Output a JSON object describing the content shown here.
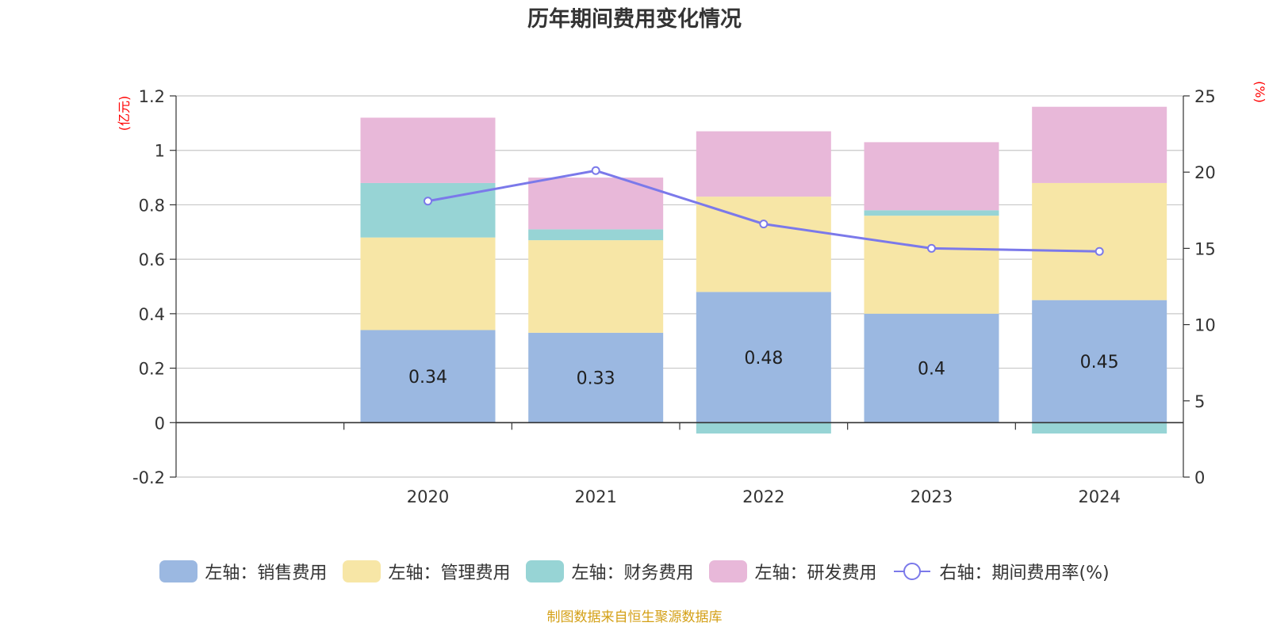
{
  "chart_data": {
    "type": "bar",
    "title": "历年期间费用变化情况",
    "categories": [
      "2020",
      "2021",
      "2022",
      "2023",
      "2024"
    ],
    "stacked": true,
    "left_axis": {
      "unit": "(亿元)",
      "ylim": [
        -0.2,
        1.2
      ],
      "ticks": [
        -0.2,
        0,
        0.2,
        0.4,
        0.6,
        0.8,
        1,
        1.2
      ],
      "tick_labels": [
        "-0.2",
        "0",
        "0.2",
        "0.4",
        "0.6",
        "0.8",
        "1",
        "1.2"
      ]
    },
    "right_axis": {
      "unit": "(%)",
      "ylim": [
        0,
        25
      ],
      "ticks": [
        0,
        5,
        10,
        15,
        20,
        25
      ],
      "tick_labels": [
        "0",
        "5",
        "10",
        "15",
        "20",
        "25"
      ]
    },
    "series": [
      {
        "name": "左轴：销售费用",
        "axis": "left",
        "type": "bar",
        "color": "#9bb8e1",
        "values": [
          0.34,
          0.33,
          0.48,
          0.4,
          0.45
        ],
        "labels": [
          "0.34",
          "0.33",
          "0.48",
          "0.4",
          "0.45"
        ]
      },
      {
        "name": "左轴：管理费用",
        "axis": "left",
        "type": "bar",
        "color": "#f7e6a6",
        "values": [
          0.34,
          0.34,
          0.35,
          0.36,
          0.43
        ]
      },
      {
        "name": "左轴：财务费用",
        "axis": "left",
        "type": "bar",
        "color": "#97d4d5",
        "values": [
          0.2,
          0.04,
          -0.04,
          0.02,
          -0.04
        ]
      },
      {
        "name": "左轴：研发费用",
        "axis": "left",
        "type": "bar",
        "color": "#e8b8d9",
        "values": [
          0.24,
          0.19,
          0.24,
          0.25,
          0.28
        ]
      },
      {
        "name": "右轴：期间费用率(%)",
        "axis": "right",
        "type": "line",
        "color": "#7b79ea",
        "values": [
          18.1,
          20.1,
          16.6,
          15.0,
          14.8
        ]
      }
    ],
    "grid": true,
    "legend_position": "bottom"
  },
  "source_note": "制图数据来自恒生聚源数据库"
}
